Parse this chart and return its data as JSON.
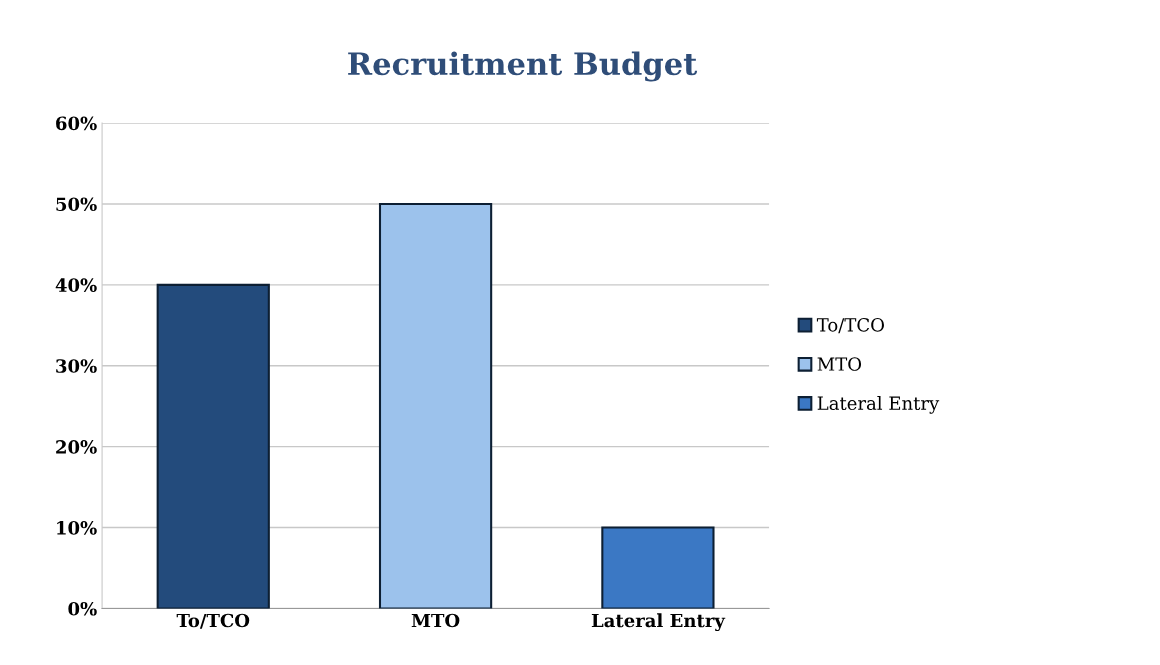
{
  "chart_data": {
    "type": "bar",
    "title": "Recruitment Budget",
    "categories": [
      "To/TCO",
      "MTO",
      "Lateral Entry"
    ],
    "series": [
      {
        "name": "To/TCO",
        "color": "#234b7c",
        "values": [
          40,
          null,
          null
        ]
      },
      {
        "name": "MTO",
        "color": "#9cc2ec",
        "values": [
          null,
          50,
          null
        ]
      },
      {
        "name": "Lateral Entry",
        "color": "#3b78c4",
        "values": [
          null,
          null,
          10
        ]
      }
    ],
    "ylim": [
      0,
      60
    ],
    "yticks": [
      {
        "value": 0,
        "label": "0%"
      },
      {
        "value": 10,
        "label": "10%"
      },
      {
        "value": 20,
        "label": "20%"
      },
      {
        "value": 30,
        "label": "30%"
      },
      {
        "value": 40,
        "label": "40%"
      },
      {
        "value": 50,
        "label": "50%"
      },
      {
        "value": 60,
        "label": "60%"
      }
    ],
    "grid": "y",
    "legend": "right"
  }
}
